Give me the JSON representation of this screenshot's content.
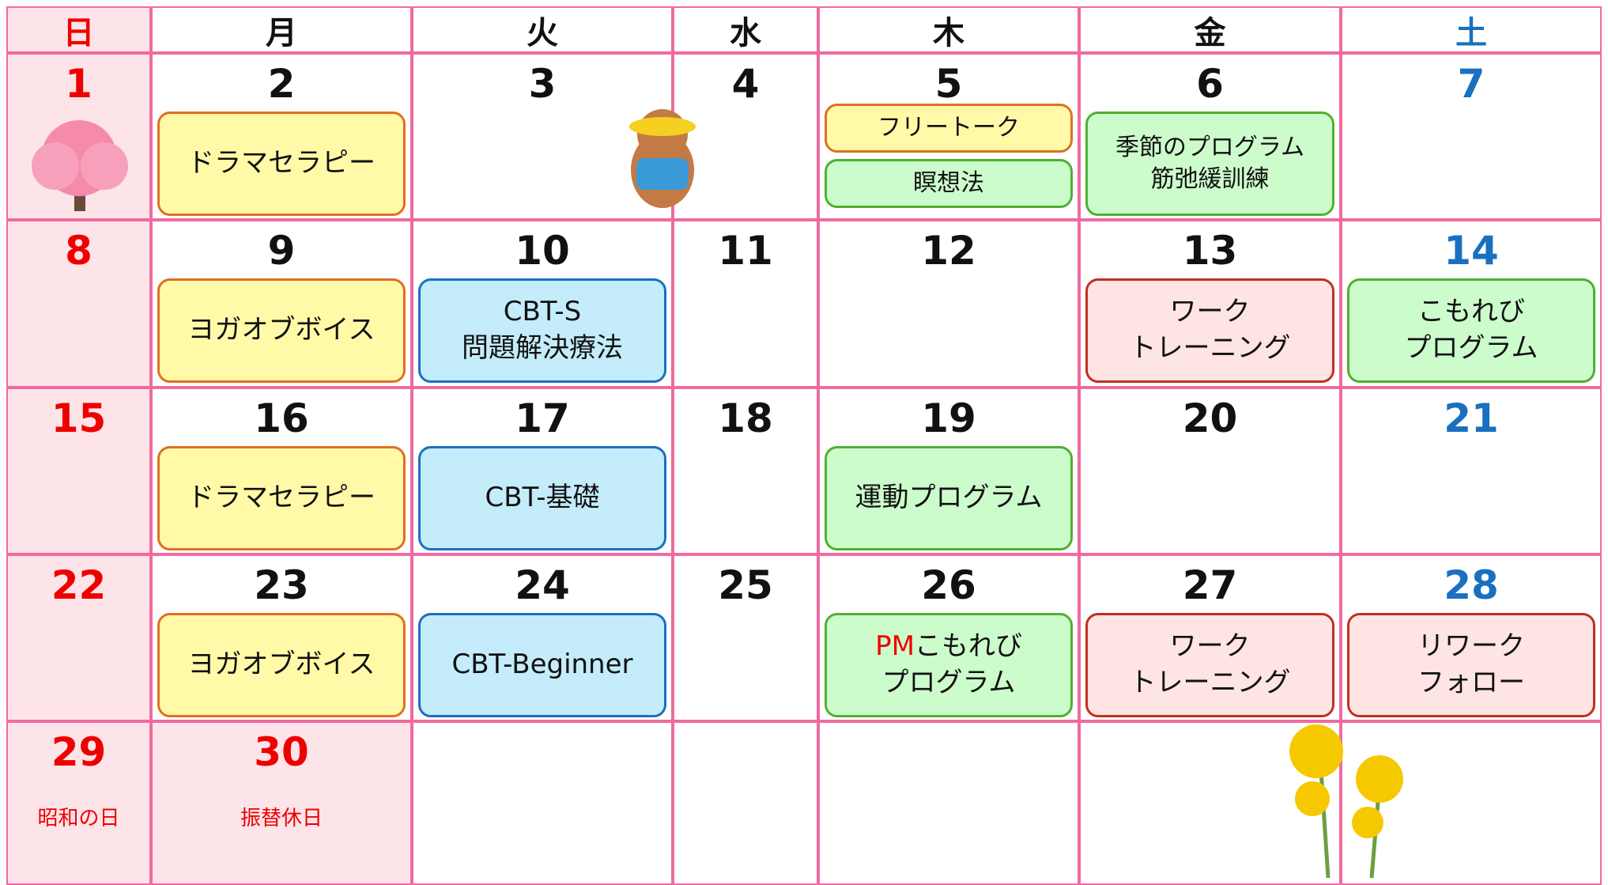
{
  "header": {
    "days": [
      "日",
      "月",
      "火",
      "水",
      "木",
      "金",
      "土"
    ]
  },
  "weeks": [
    [
      {
        "day": 1
      },
      {
        "day": 2,
        "events": [
          {
            "lines": [
              "ドラマセラピー"
            ],
            "color": "yellow"
          }
        ]
      },
      {
        "day": 3
      },
      {
        "day": 4
      },
      {
        "day": 5,
        "events": [
          {
            "lines": [
              "フリートーク"
            ],
            "color": "yellow"
          },
          {
            "lines": [
              "瞑想法"
            ],
            "color": "green"
          }
        ]
      },
      {
        "day": 6,
        "events": [
          {
            "lines": [
              "季節のプログラム",
              "筋弛緩訓練"
            ],
            "color": "green"
          }
        ]
      },
      {
        "day": 7
      }
    ],
    [
      {
        "day": 8
      },
      {
        "day": 9,
        "events": [
          {
            "lines": [
              "ヨガオブボイス"
            ],
            "color": "yellow"
          }
        ]
      },
      {
        "day": 10,
        "events": [
          {
            "lines": [
              "CBT-S",
              "問題解決療法"
            ],
            "color": "blue"
          }
        ]
      },
      {
        "day": 11
      },
      {
        "day": 12
      },
      {
        "day": 13,
        "events": [
          {
            "lines": [
              "ワーク",
              "トレーニング"
            ],
            "color": "pink"
          }
        ]
      },
      {
        "day": 14,
        "events": [
          {
            "lines": [
              "こもれび",
              "プログラム"
            ],
            "color": "green"
          }
        ]
      }
    ],
    [
      {
        "day": 15
      },
      {
        "day": 16,
        "events": [
          {
            "lines": [
              "ドラマセラピー"
            ],
            "color": "yellow"
          }
        ]
      },
      {
        "day": 17,
        "events": [
          {
            "lines": [
              "CBT-基礎"
            ],
            "color": "blue"
          }
        ]
      },
      {
        "day": 18
      },
      {
        "day": 19,
        "events": [
          {
            "lines": [
              "運動プログラム"
            ],
            "color": "green"
          }
        ]
      },
      {
        "day": 20
      },
      {
        "day": 21
      }
    ],
    [
      {
        "day": 22
      },
      {
        "day": 23,
        "events": [
          {
            "lines": [
              "ヨガオブボイス"
            ],
            "color": "yellow"
          }
        ]
      },
      {
        "day": 24,
        "events": [
          {
            "lines": [
              "CBT-Beginner"
            ],
            "color": "blue"
          }
        ]
      },
      {
        "day": 25
      },
      {
        "day": 26,
        "events": [
          {
            "accent": "PM",
            "lines": [
              "こもれび",
              "プログラム"
            ],
            "color": "green"
          }
        ]
      },
      {
        "day": 27,
        "events": [
          {
            "lines": [
              "ワーク",
              "トレーニング"
            ],
            "color": "pink"
          }
        ]
      },
      {
        "day": 28,
        "events": [
          {
            "lines": [
              "リワーク",
              "フォロー"
            ],
            "color": "pink"
          }
        ]
      }
    ],
    [
      {
        "day": 29,
        "note": "昭和の日",
        "holiday": true
      },
      {
        "day": 30,
        "note": "振替休日",
        "holiday": true
      },
      null,
      null,
      null,
      null,
      null
    ]
  ]
}
